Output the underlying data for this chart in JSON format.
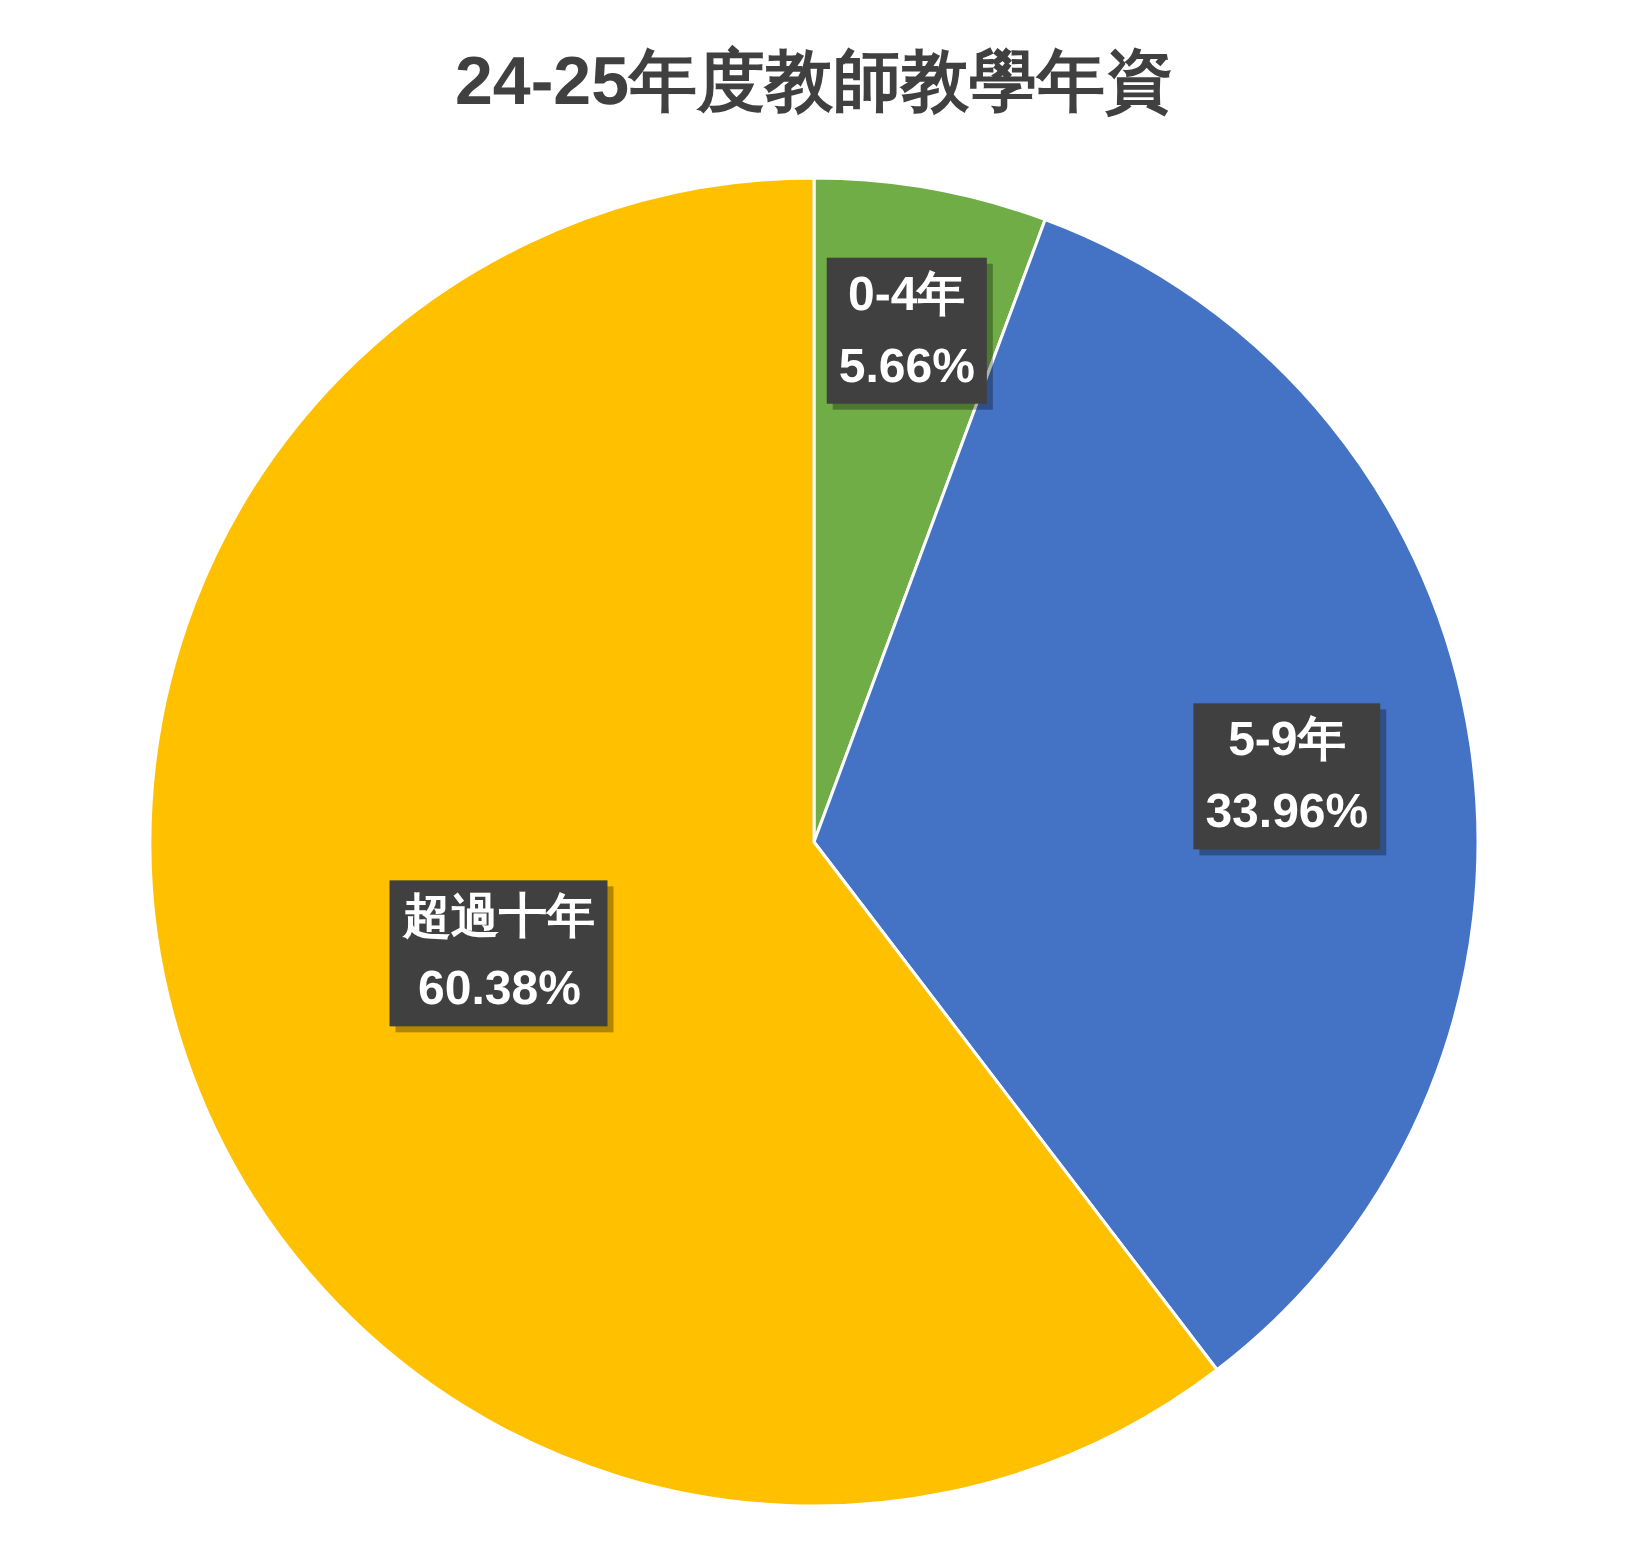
{
  "chart_data": {
    "type": "pie",
    "title": "24-25年度教師教學年資",
    "categories": [
      "0-4年",
      "5-9年",
      "超過十年"
    ],
    "values": [
      5.66,
      33.96,
      60.38
    ],
    "colors": [
      "#70ad47",
      "#4472c4",
      "#ffc000"
    ],
    "value_labels": [
      "5.66%",
      "33.96%",
      "60.38%"
    ],
    "legend": false
  }
}
